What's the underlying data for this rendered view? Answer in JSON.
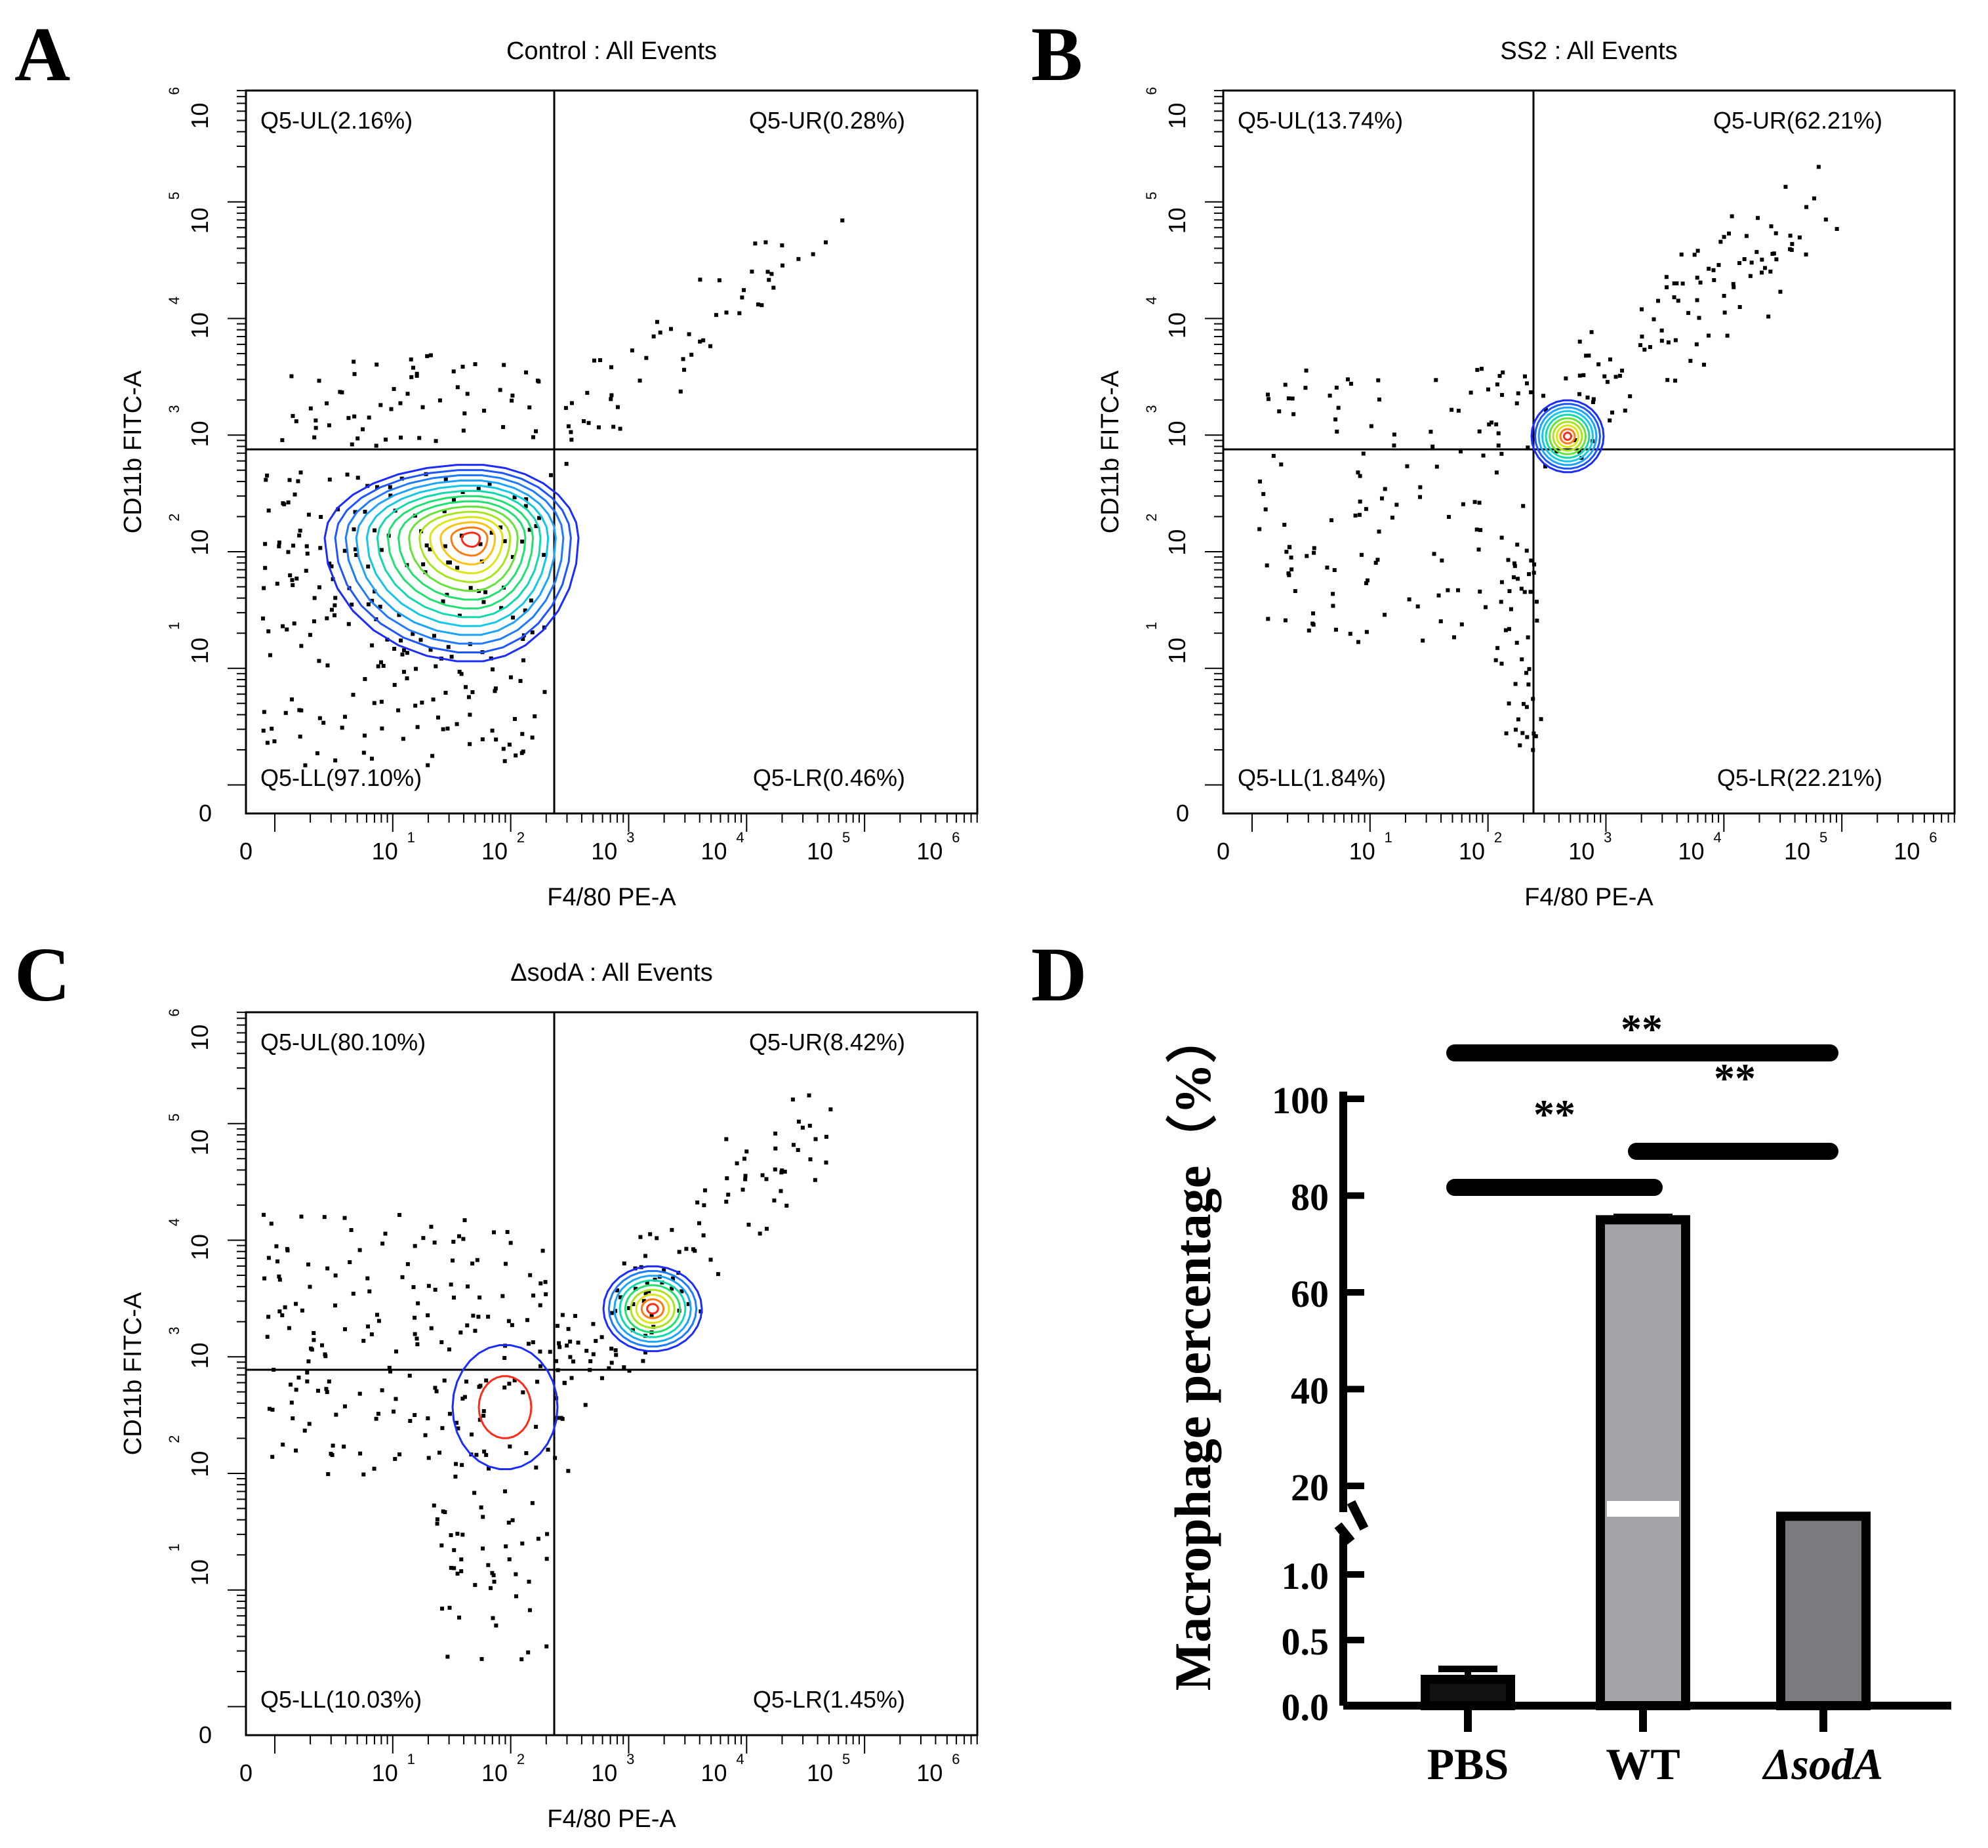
{
  "figure": {
    "panel_letters": [
      "A",
      "B",
      "C",
      "D"
    ]
  },
  "flow_panels": [
    {
      "letter": "A",
      "title": "Control : All Events",
      "xlabel": "F4/80 PE-A",
      "ylabel": "CD11b FITC-A",
      "ul": "Q5-UL(2.16%)",
      "ur": "Q5-UR(0.28%)",
      "ll": "Q5-LL(97.10%)",
      "lr": "Q5-LR(0.46%)",
      "tick_exponents": [
        "1",
        "2",
        "3",
        "4",
        "5",
        "6"
      ]
    },
    {
      "letter": "B",
      "title": "SS2 : All Events",
      "xlabel": "F4/80 PE-A",
      "ylabel": "CD11b FITC-A",
      "ul": "Q5-UL(13.74%)",
      "ur": "Q5-UR(62.21%)",
      "ll": "Q5-LL(1.84%)",
      "lr": "Q5-LR(22.21%)",
      "tick_exponents": [
        "1",
        "2",
        "3",
        "4",
        "5",
        "6"
      ]
    },
    {
      "letter": "C",
      "title": "ΔsodA : All Events",
      "xlabel": "F4/80 PE-A",
      "ylabel": "CD11b FITC-A",
      "ul": "Q5-UL(80.10%)",
      "ur": "Q5-UR(8.42%)",
      "ll": "Q5-LL(10.03%)",
      "lr": "Q5-LR(1.45%)",
      "tick_exponents": [
        "1",
        "2",
        "3",
        "4",
        "5",
        "6"
      ]
    }
  ],
  "axis_text": {
    "zero": "0",
    "ten": "10"
  },
  "chart_data": [
    {
      "type": "scatter",
      "title": "Control : All Events",
      "xlabel": "F4/80 PE-A",
      "ylabel": "CD11b FITC-A",
      "xlim_decades": [
        0,
        6
      ],
      "ylim_decades": [
        0,
        6
      ],
      "quadrants": {
        "UL": 2.16,
        "UR": 0.28,
        "LL": 97.1,
        "LR": 0.46
      }
    },
    {
      "type": "scatter",
      "title": "SS2 : All Events",
      "xlabel": "F4/80 PE-A",
      "ylabel": "CD11b FITC-A",
      "xlim_decades": [
        0,
        6
      ],
      "ylim_decades": [
        0,
        6
      ],
      "quadrants": {
        "UL": 13.74,
        "UR": 62.21,
        "LL": 1.84,
        "LR": 22.21
      }
    },
    {
      "type": "scatter",
      "title": "ΔsodA : All Events",
      "xlabel": "F4/80 PE-A",
      "ylabel": "CD11b FITC-A",
      "xlim_decades": [
        0,
        6
      ],
      "ylim_decades": [
        0,
        6
      ],
      "quadrants": {
        "UL": 80.1,
        "UR": 8.42,
        "LL": 10.03,
        "LR": 1.45
      }
    },
    {
      "type": "bar",
      "title": "",
      "xlabel": "",
      "ylabel": "Macrophage percentage（%）",
      "categories": [
        "PBS",
        "WT",
        "ΔsodA"
      ],
      "values": [
        0.2,
        75,
        9
      ],
      "errors": [
        0.08,
        0.6,
        0.2
      ],
      "ylim": [
        0,
        100
      ],
      "y_broken_axis": true,
      "lower_ticks": [
        "0.0",
        "0.5",
        "1.0"
      ],
      "upper_ticks": [
        "20",
        "40",
        "60",
        "80",
        "100"
      ],
      "significance": [
        {
          "pair": [
            "PBS",
            "WT"
          ],
          "label": "**"
        },
        {
          "pair": [
            "WT",
            "ΔsodA"
          ],
          "label": "**"
        },
        {
          "pair": [
            "PBS",
            "ΔsodA"
          ],
          "label": "**"
        }
      ],
      "bar_colors": [
        "#111111",
        "#a3a3a8",
        "#7b7b7f"
      ]
    }
  ]
}
